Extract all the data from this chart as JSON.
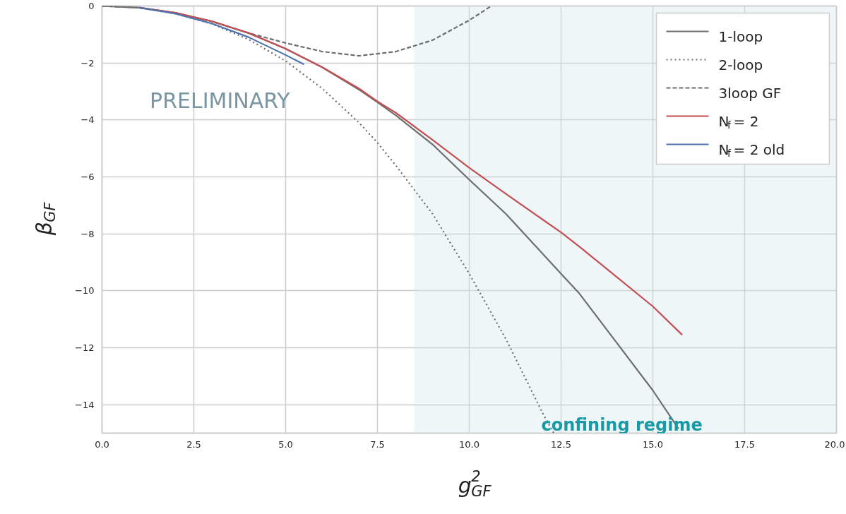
{
  "chart_data": {
    "type": "line",
    "xlabel": "g$^{2}$$_{GF}$",
    "ylabel": "β$_{GF}$",
    "xlim": [
      0,
      20
    ],
    "ylim": [
      -15,
      0
    ],
    "xticks": [
      {
        "value": 0,
        "label": "0.0"
      },
      {
        "value": 2.5,
        "label": "2.5"
      },
      {
        "value": 5,
        "label": "5.0"
      },
      {
        "value": 7.5,
        "label": "7.5"
      },
      {
        "value": 10,
        "label": "10.0"
      },
      {
        "value": 12.5,
        "label": "12.5"
      },
      {
        "value": 15,
        "label": "15.0"
      },
      {
        "value": 17.5,
        "label": "17.5"
      },
      {
        "value": 20,
        "label": "20.0"
      }
    ],
    "yticks": [
      0,
      -2,
      -4,
      -6,
      -8,
      -10,
      -12,
      -14
    ],
    "grid": true,
    "legend": "top right",
    "series": [
      {
        "name": "1-loop",
        "color": "#6e6e6e",
        "line_style": "solid",
        "x": [
          0,
          1,
          2,
          3,
          4,
          5,
          6,
          7,
          7.5,
          8,
          9,
          10,
          11,
          12,
          12.5,
          13,
          14,
          15,
          15.7
        ],
        "values": [
          0,
          -0.06,
          -0.24,
          -0.54,
          -0.96,
          -1.5,
          -2.16,
          -2.94,
          -3.38,
          -3.84,
          -4.86,
          -6.1,
          -7.3,
          -8.7,
          -9.4,
          -10.1,
          -11.8,
          -13.5,
          -14.85
        ]
      },
      {
        "name": "2-loop",
        "color": "#6e6e6e",
        "line_style": "dotted",
        "x": [
          0,
          1,
          2,
          3,
          4,
          5,
          6,
          7,
          7.5,
          8,
          9,
          10,
          11,
          12,
          12.3
        ],
        "values": [
          0,
          -0.06,
          -0.27,
          -0.63,
          -1.18,
          -1.93,
          -2.9,
          -4.1,
          -4.8,
          -5.6,
          -7.3,
          -9.4,
          -11.7,
          -14.3,
          -15
        ]
      },
      {
        "name": "3loop GF",
        "color": "#6e6e6e",
        "line_style": "dashed",
        "x": [
          0,
          1,
          2,
          3,
          4,
          5,
          6,
          7,
          8,
          9,
          10,
          10.6
        ],
        "values": [
          0,
          -0.06,
          -0.25,
          -0.55,
          -0.95,
          -1.3,
          -1.6,
          -1.75,
          -1.6,
          -1.2,
          -0.5,
          0
        ]
      },
      {
        "name": "N$_{f}$ = 2",
        "color": "#c44e52",
        "line_style": "solid",
        "x": [
          1,
          2,
          3,
          4,
          5,
          6,
          7,
          7.5,
          8,
          9,
          10,
          11,
          12,
          12.5,
          13,
          14,
          15,
          15.8
        ],
        "values": [
          -0.05,
          -0.24,
          -0.54,
          -0.95,
          -1.5,
          -2.15,
          -2.9,
          -3.35,
          -3.75,
          -4.7,
          -5.68,
          -6.6,
          -7.5,
          -7.95,
          -8.45,
          -9.5,
          -10.55,
          -11.55
        ]
      },
      {
        "name": "N$_{f}$ = 2  old",
        "color": "#4c72b0",
        "line_style": "solid",
        "x": [
          1,
          2,
          3,
          4,
          5,
          5.5
        ],
        "values": [
          -0.05,
          -0.27,
          -0.62,
          -1.1,
          -1.72,
          -2.05
        ]
      }
    ],
    "bands": [
      {
        "axis": "x",
        "from": 8.5,
        "to": 20,
        "label": "confining regime",
        "color": "#cfe6ea"
      }
    ],
    "annotations": [
      "PRELIMINARY"
    ]
  }
}
